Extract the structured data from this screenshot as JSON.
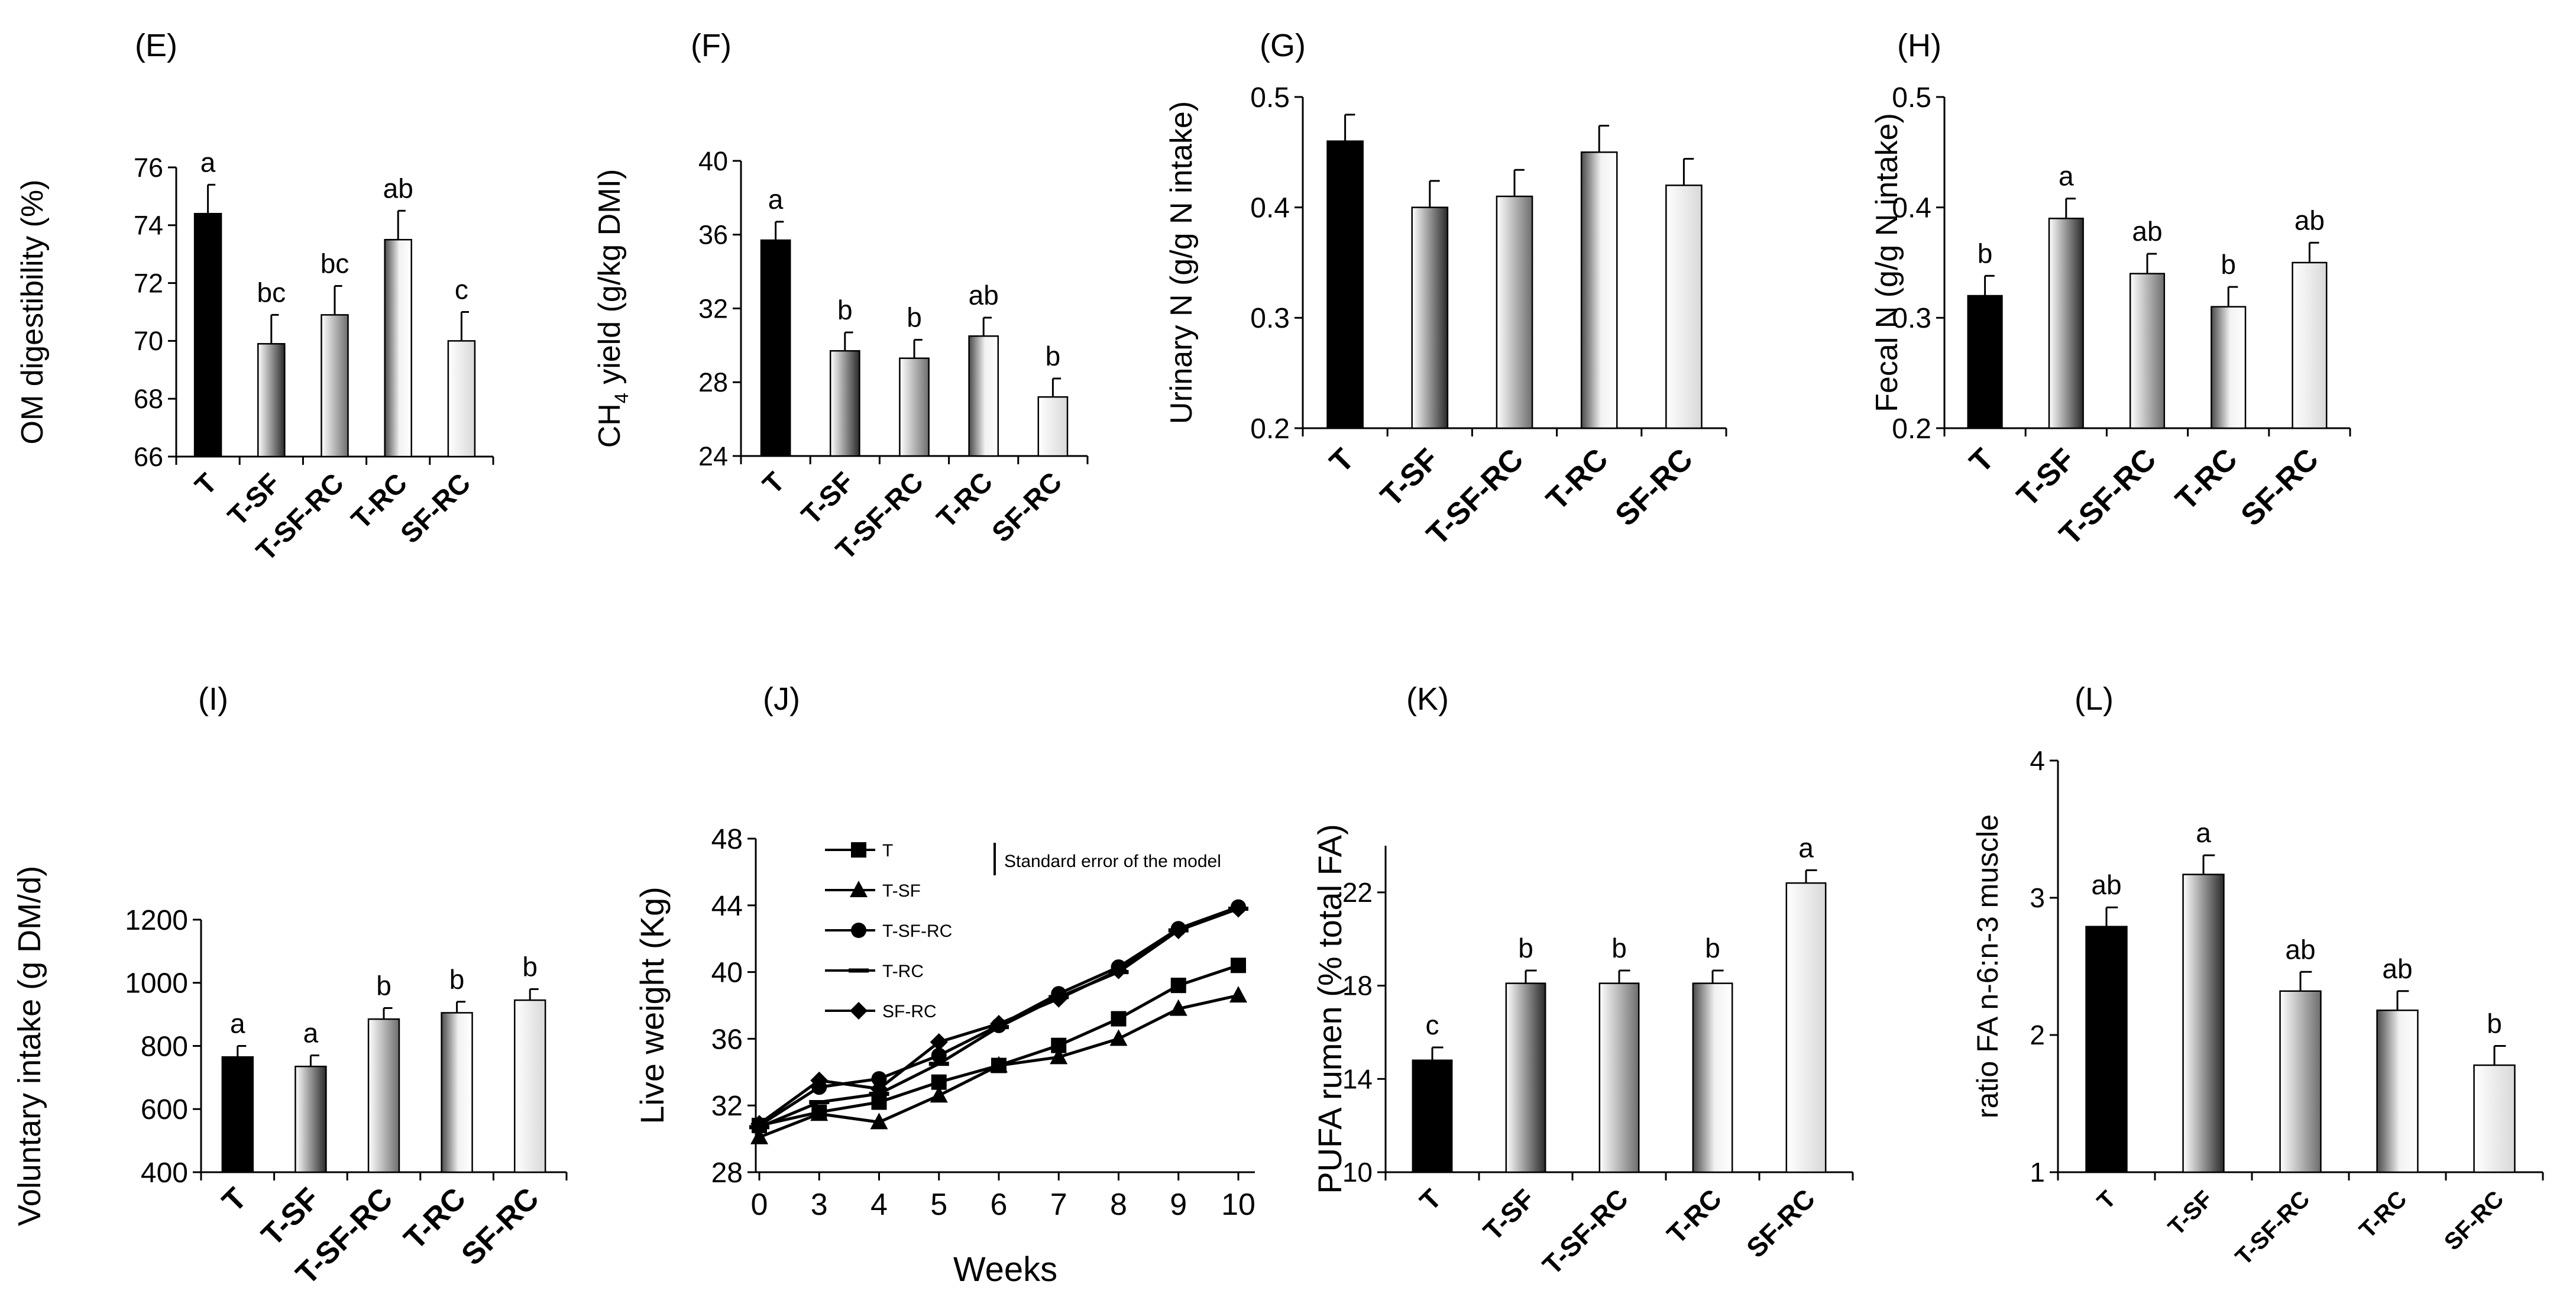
{
  "colors": {
    "axis": "#000000",
    "bar_T": "#000000",
    "bar_T-SF": [
      "#2a2a2a",
      "#ffffff"
    ],
    "bar_T-SF-RC": [
      "#6e6e6e",
      "#ffffff"
    ],
    "bar_T-RC": [
      "#4a4a4a",
      "#ffffff"
    ],
    "bar_SF-RC": [
      "#d8d8d8",
      "#ffffff"
    ]
  },
  "chart_data": [
    {
      "id": "E",
      "type": "bar",
      "panel_label": "(E)",
      "ylabel": "OM digestibility (%)",
      "categories": [
        "T",
        "T-SF",
        "T-SF-RC",
        "T-RC",
        "SF-RC"
      ],
      "values": [
        74.4,
        69.9,
        70.9,
        73.5,
        70.0
      ],
      "errors": [
        1.0,
        1.0,
        1.0,
        1.0,
        1.0
      ],
      "letters": [
        "a",
        "bc",
        "bc",
        "ab",
        "c"
      ],
      "ylim": [
        66,
        76
      ],
      "yticks": [
        66,
        68,
        70,
        72,
        74,
        76
      ],
      "ytick_labels": [
        "66",
        "68",
        "70",
        "72",
        "74",
        "76"
      ],
      "xtick_size": 47,
      "ytick_size": 45,
      "ylabel_size": 52
    },
    {
      "id": "F",
      "type": "bar",
      "panel_label": "(F)",
      "ylabel_main": "CH",
      "ylabel_sub": "4",
      "ylabel_rest": " yield (g/kg DMI)",
      "categories": [
        "T",
        "T-SF",
        "T-SF-RC",
        "T-RC",
        "SF-RC"
      ],
      "values": [
        35.7,
        29.7,
        29.3,
        30.5,
        27.2
      ],
      "errors": [
        1.0,
        1.0,
        1.0,
        1.0,
        1.0
      ],
      "letters": [
        "a",
        "b",
        "b",
        "ab",
        "b"
      ],
      "ylim": [
        24,
        40
      ],
      "yticks": [
        24,
        28,
        32,
        36,
        40
      ],
      "ytick_labels": [
        "24",
        "28",
        "32",
        "36",
        "40"
      ],
      "xtick_size": 47,
      "ytick_size": 45,
      "ylabel_size": 52
    },
    {
      "id": "G",
      "type": "bar",
      "panel_label": "(G)",
      "ylabel": "Urinary N (g/g N intake)",
      "categories": [
        "T",
        "T-SF",
        "T-SF-RC",
        "T-RC",
        "SF-RC"
      ],
      "values": [
        0.46,
        0.4,
        0.41,
        0.45,
        0.42
      ],
      "errors": [
        0.024,
        0.024,
        0.024,
        0.024,
        0.024
      ],
      "letters": [
        "",
        "",
        "",
        "",
        ""
      ],
      "ylim": [
        0.2,
        0.5
      ],
      "yticks": [
        0.2,
        0.3,
        0.4,
        0.5
      ],
      "ytick_labels": [
        "0.2",
        "0.3",
        "0.4",
        "0.5"
      ],
      "xtick_size": 52,
      "ytick_size": 48,
      "ylabel_size": 52
    },
    {
      "id": "H",
      "type": "bar",
      "panel_label": "(H)",
      "ylabel": "Fecal N (g/g N intake)",
      "categories": [
        "T",
        "T-SF",
        "T-SF-RC",
        "T-RC",
        "SF-RC"
      ],
      "values": [
        0.32,
        0.39,
        0.34,
        0.31,
        0.35
      ],
      "errors": [
        0.018,
        0.018,
        0.018,
        0.018,
        0.018
      ],
      "letters": [
        "b",
        "a",
        "ab",
        "b",
        "ab"
      ],
      "ylim": [
        0.2,
        0.5
      ],
      "yticks": [
        0.2,
        0.3,
        0.4,
        0.5
      ],
      "ytick_labels": [
        "0.2",
        "0.3",
        "0.4",
        "0.5"
      ],
      "xtick_size": 52,
      "ytick_size": 48,
      "ylabel_size": 52
    },
    {
      "id": "I",
      "type": "bar",
      "panel_label": "(I)",
      "ylabel": "Voluntary intake (g DM/d)",
      "categories": [
        "T",
        "T-SF",
        "T-SF-RC",
        "T-RC",
        "SF-RC"
      ],
      "values": [
        765,
        735,
        885,
        905,
        945
      ],
      "errors": [
        35,
        35,
        35,
        35,
        35
      ],
      "letters": [
        "a",
        "a",
        "b",
        "b",
        "b"
      ],
      "ylim": [
        400,
        1200
      ],
      "yticks": [
        400,
        600,
        800,
        1000,
        1200
      ],
      "ytick_labels": [
        "400",
        "600",
        "800",
        "1000",
        "1200"
      ],
      "xtick_size": 52,
      "ytick_size": 48,
      "ylabel_size": 54
    },
    {
      "id": "J",
      "type": "line",
      "panel_label": "(J)",
      "xlabel": "Weeks",
      "ylabel": "Live weight (Kg)",
      "x": [
        0,
        3,
        4,
        5,
        6,
        7,
        8,
        9,
        10
      ],
      "series": [
        {
          "name": "T",
          "marker": "square",
          "values": [
            30.8,
            31.6,
            32.2,
            33.4,
            34.4,
            35.6,
            37.2,
            39.2,
            40.4
          ]
        },
        {
          "name": "T-SF",
          "marker": "triangle",
          "values": [
            30.1,
            31.5,
            31.0,
            32.6,
            34.4,
            34.9,
            36.0,
            37.8,
            38.6
          ]
        },
        {
          "name": "T-SF-RC",
          "marker": "circle",
          "values": [
            30.8,
            33.1,
            33.6,
            35.0,
            36.8,
            38.7,
            40.3,
            42.6,
            43.9
          ]
        },
        {
          "name": "T-RC",
          "marker": "dash",
          "values": [
            30.7,
            32.2,
            32.7,
            34.5,
            36.7,
            38.5,
            40.0,
            42.5,
            43.8
          ]
        },
        {
          "name": "SF-RC",
          "marker": "diamond",
          "values": [
            30.9,
            33.5,
            33.0,
            35.8,
            36.9,
            38.4,
            40.1,
            42.5,
            43.8
          ]
        }
      ],
      "annotation": "Standard error of the model",
      "ylim": [
        28,
        48
      ],
      "yticks": [
        28,
        32,
        36,
        40,
        44,
        48
      ],
      "ytick_labels": [
        "28",
        "32",
        "36",
        "40",
        "44",
        "48"
      ],
      "xtick_labels": [
        "0",
        "3",
        "4",
        "5",
        "6",
        "7",
        "8",
        "9",
        "10"
      ]
    },
    {
      "id": "K",
      "type": "bar",
      "panel_label": "(K)",
      "ylabel": "PUFA rumen (% total FA)",
      "categories": [
        "T",
        "T-SF",
        "T-SF-RC",
        "T-RC",
        "SF-RC"
      ],
      "values": [
        14.8,
        18.1,
        18.1,
        18.1,
        22.4
      ],
      "errors": [
        0.55,
        0.55,
        0.55,
        0.55,
        0.55
      ],
      "letters": [
        "c",
        "b",
        "b",
        "b",
        "a"
      ],
      "ylim": [
        10,
        24
      ],
      "yticks": [
        10,
        14,
        18,
        22
      ],
      "ytick_labels": [
        "10",
        "14",
        "18",
        "22"
      ],
      "xtick_size": 46,
      "ytick_size": 46,
      "ylabel_size": 56
    },
    {
      "id": "L",
      "type": "bar",
      "panel_label": "(L)",
      "ylabel": "ratio FA n-6:n-3 muscle",
      "categories": [
        "T",
        "T-SF",
        "T-SF-RC",
        "T-RC",
        "SF-RC"
      ],
      "values": [
        2.79,
        3.17,
        2.32,
        2.18,
        1.78
      ],
      "errors": [
        0.14,
        0.14,
        0.14,
        0.14,
        0.14
      ],
      "letters": [
        "ab",
        "a",
        "ab",
        "ab",
        "b"
      ],
      "ylim": [
        1,
        4
      ],
      "yticks": [
        1,
        2,
        3,
        4
      ],
      "ytick_labels": [
        "1",
        "2",
        "3",
        "4"
      ],
      "xtick_size": 40,
      "ytick_size": 46,
      "ylabel_size": 50
    }
  ]
}
